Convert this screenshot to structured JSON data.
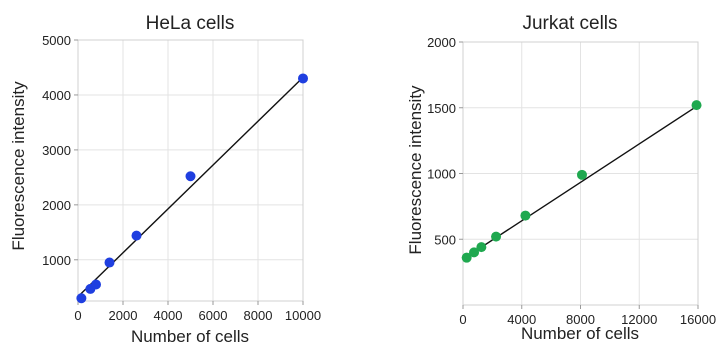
{
  "chart_data": [
    {
      "type": "scatter",
      "title": "HeLa cells",
      "xlabel": "Number of cells",
      "ylabel": "Fluorescence intensity",
      "xlim": [
        0,
        10000
      ],
      "ylim": [
        250,
        5000
      ],
      "xticks": [
        0,
        2000,
        4000,
        6000,
        8000,
        10000
      ],
      "yticks": [
        1000,
        2000,
        3000,
        4000,
        5000
      ],
      "grid": true,
      "marker_color": "#1f3fe0",
      "series": [
        {
          "x": [
            150,
            550,
            800,
            1400,
            2600,
            5000,
            10000
          ],
          "y": [
            300,
            470,
            550,
            950,
            1440,
            2520,
            4300
          ]
        }
      ],
      "fit_line": {
        "x": [
          0,
          9950
        ],
        "y": [
          330,
          4300
        ]
      }
    },
    {
      "type": "scatter",
      "title": "Jurkat cells",
      "xlabel": "Number of cells",
      "ylabel": "Fluorescence intensity",
      "xlim": [
        0,
        16000
      ],
      "ylim": [
        0,
        2000
      ],
      "xticks": [
        0,
        4000,
        8000,
        12000,
        16000
      ],
      "yticks": [
        500,
        1000,
        1500,
        2000
      ],
      "grid": true,
      "marker_color": "#1fa84f",
      "series": [
        {
          "x": [
            250,
            750,
            1250,
            2250,
            4250,
            8100,
            15900
          ],
          "y": [
            360,
            400,
            440,
            520,
            680,
            990,
            1520
          ]
        }
      ],
      "fit_line": {
        "x": [
          300,
          15900
        ],
        "y": [
          370,
          1510
        ]
      }
    }
  ]
}
